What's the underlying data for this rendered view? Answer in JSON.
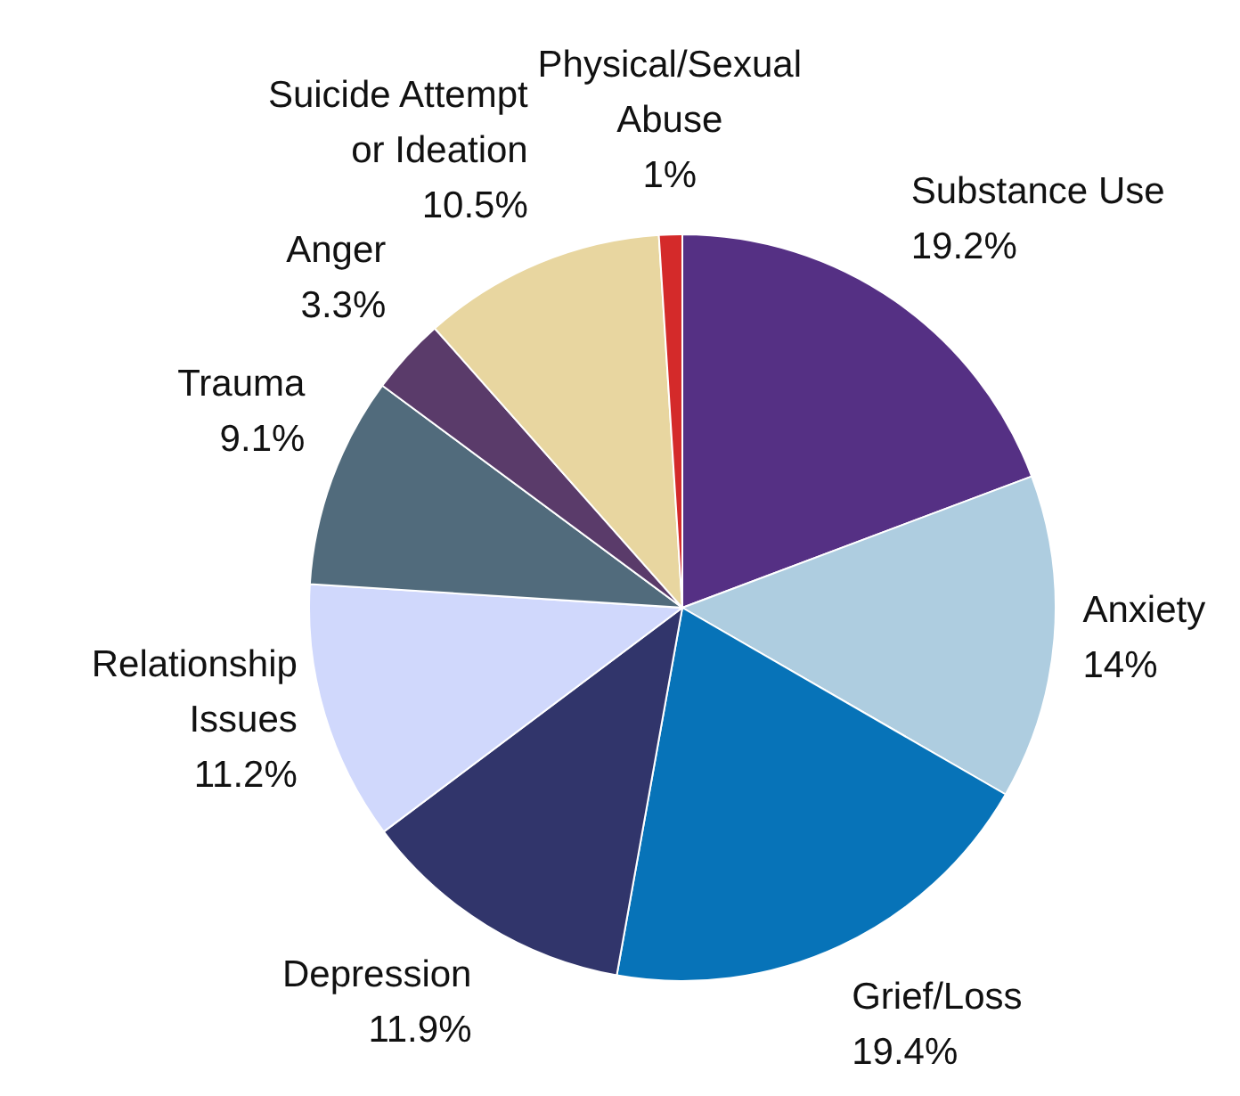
{
  "chart_data": {
    "type": "pie",
    "categories": [
      "Substance Use",
      "Anxiety",
      "Grief/Loss",
      "Depression",
      "Relationship Issues",
      "Trauma",
      "Anger",
      "Suicide Attempt or Ideation",
      "Physical/Sexual Abuse"
    ],
    "values": [
      19.2,
      14,
      19.4,
      11.9,
      11.2,
      9.1,
      3.3,
      10.5,
      1
    ],
    "value_labels": [
      "19.2%",
      "14%",
      "19.4%",
      "11.9%",
      "11.2%",
      "9.1%",
      "3.3%",
      "10.5%",
      "1%"
    ],
    "colors": [
      "#553084",
      "#aecde0",
      "#0773b8",
      "#31356b",
      "#d0d8fc",
      "#516b7c",
      "#5a3b6a",
      "#e8d6a0",
      "#d42a2a"
    ],
    "legend": false
  }
}
